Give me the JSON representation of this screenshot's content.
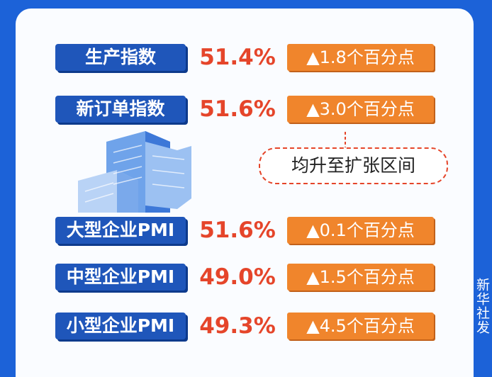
{
  "rows": [
    {
      "label": "生产指数",
      "value": "51.4%",
      "change": "▲1.8个百分点"
    },
    {
      "label": "新订单指数",
      "value": "51.6%",
      "change": "▲3.0个百分点"
    },
    {
      "label": "大型企业PMI",
      "value": "51.6%",
      "change": "▲0.1个百分点"
    },
    {
      "label": "中型企业PMI",
      "value": "49.0%",
      "change": "▲1.5个百分点"
    },
    {
      "label": "小型企业PMI",
      "value": "49.3%",
      "change": "▲4.5个百分点"
    }
  ],
  "note": "均升至扩张区间",
  "credit": "新华社发"
}
